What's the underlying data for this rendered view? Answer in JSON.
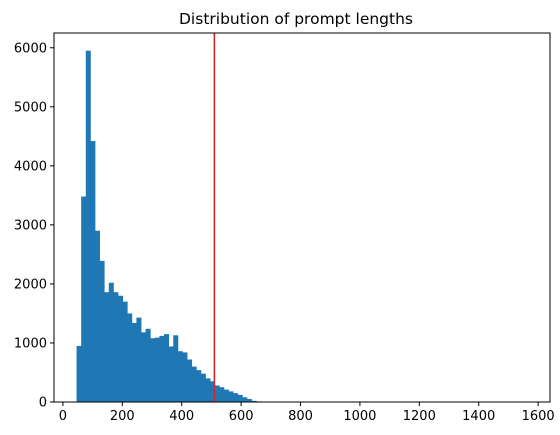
{
  "chart_data": {
    "type": "histogram",
    "title": "Distribution of prompt lengths",
    "xlabel": "",
    "ylabel": "",
    "xlim": [
      -30,
      1640
    ],
    "ylim": [
      0,
      6250
    ],
    "xticks": [
      0,
      200,
      400,
      600,
      800,
      1000,
      1200,
      1400,
      1600
    ],
    "yticks": [
      0,
      1000,
      2000,
      3000,
      4000,
      5000,
      6000
    ],
    "bin_start": 46,
    "bin_width": 15.5,
    "bar_color": "#1f77b4",
    "counts": [
      950,
      3480,
      5950,
      4420,
      2900,
      2390,
      1860,
      2020,
      1860,
      1800,
      1700,
      1500,
      1340,
      1430,
      1180,
      1240,
      1080,
      1090,
      1120,
      1150,
      940,
      1130,
      860,
      840,
      720,
      600,
      540,
      480,
      400,
      350,
      280,
      250,
      210,
      180,
      150,
      120,
      80,
      50,
      20,
      10
    ],
    "vline": {
      "x": 510,
      "color": "#d62728"
    },
    "grid": false,
    "legend": false
  }
}
